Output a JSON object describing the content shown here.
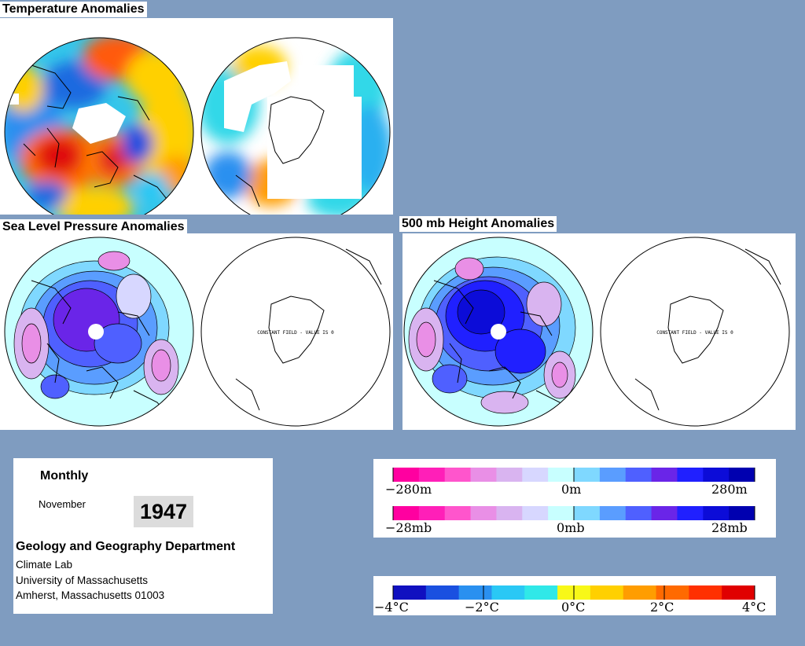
{
  "titles": {
    "temperature": "Temperature Anomalies",
    "slp": "Sea Level Pressure Anomalies",
    "height": "500 mb Height Anomalies"
  },
  "maps": {
    "constant_field_label": "CONSTANT FIELD - VALUE IS 0"
  },
  "info": {
    "frequency": "Monthly",
    "month": "November",
    "year": "1947",
    "department": "Geology and Geography Department",
    "lab": "Climate Lab",
    "university": "University of Massachusetts",
    "address": "Amherst, Massachusetts 01003"
  },
  "legends": {
    "height": {
      "min": "−280m",
      "mid": "0m",
      "max": "280m"
    },
    "pressure": {
      "min": "−28mb",
      "mid": "0mb",
      "max": "28mb"
    },
    "temperature": {
      "t1": "−4°C",
      "t2": "−2°C",
      "t3": "0°C",
      "t4": "2°C",
      "t5": "4°C"
    },
    "anomaly_colors": [
      "#ff00a0",
      "#ff1fb8",
      "#ff55cc",
      "#e98fe6",
      "#d9b4f0",
      "#d7d7ff",
      "#c8ffff",
      "#7fd8ff",
      "#5a9dff",
      "#4f60ff",
      "#6a25e8",
      "#2020ff",
      "#0c0cd8",
      "#0000b0"
    ],
    "temperature_colors": [
      "#1010c0",
      "#1a50e0",
      "#2a90f0",
      "#2ac8f5",
      "#30e8e8",
      "#f8f818",
      "#ffd000",
      "#ff9d00",
      "#ff6a00",
      "#ff3000",
      "#e00000"
    ]
  }
}
